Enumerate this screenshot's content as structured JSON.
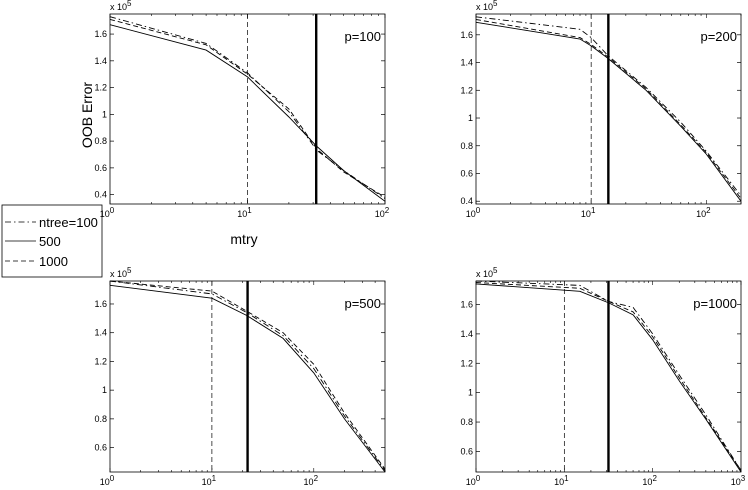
{
  "figure": {
    "ylabel": "OOB Error",
    "xlabel": "mtry",
    "legend": {
      "placement": "left, between top and bottom rows",
      "entries": [
        {
          "label": "ntree=100",
          "style": "dashdot"
        },
        {
          "label": "500",
          "style": "solid"
        },
        {
          "label": "1000",
          "style": "dashed"
        }
      ]
    }
  },
  "chart_data": [
    {
      "type": "line",
      "panel": "top-left",
      "title": "p=100",
      "xscale": "log",
      "xlim": [
        1,
        100
      ],
      "ylim": [
        0.33,
        1.75
      ],
      "yscale_label": "x 10^5",
      "yticks": [
        0.4,
        0.6,
        0.8,
        1,
        1.2,
        1.4,
        1.6
      ],
      "ytick_labels": [
        "0.4",
        "0.6",
        "0.8",
        "1",
        "1.2",
        "1.4",
        "1.6"
      ],
      "xtick_labels": [
        {
          "base": "10",
          "exp": "0"
        },
        {
          "base": "10",
          "exp": "1"
        },
        {
          "base": "10",
          "exp": "2"
        }
      ],
      "vlines": [
        {
          "x": 10,
          "style": "dashed"
        },
        {
          "x": 31.6,
          "style": "thick"
        }
      ],
      "series": [
        {
          "name": "ntree=100",
          "style": "dashdot",
          "x": [
            1,
            5,
            10,
            20,
            32,
            50,
            100
          ],
          "y": [
            1.73,
            1.53,
            1.31,
            1.02,
            0.73,
            0.58,
            0.37
          ]
        },
        {
          "name": "500",
          "style": "solid",
          "x": [
            1,
            5,
            10,
            20,
            32,
            50,
            100
          ],
          "y": [
            1.67,
            1.48,
            1.28,
            0.98,
            0.76,
            0.58,
            0.35
          ]
        },
        {
          "name": "1000",
          "style": "dashed",
          "x": [
            1,
            5,
            10,
            20,
            32,
            50,
            100
          ],
          "y": [
            1.71,
            1.52,
            1.3,
            1.04,
            0.74,
            0.57,
            0.38
          ]
        }
      ]
    },
    {
      "type": "line",
      "panel": "top-right",
      "title": "p=200",
      "xscale": "log",
      "xlim": [
        1,
        200
      ],
      "ylim": [
        0.38,
        1.75
      ],
      "yscale_label": "x 10^5",
      "yticks": [
        0.4,
        0.6,
        0.8,
        1,
        1.2,
        1.4,
        1.6
      ],
      "ytick_labels": [
        "0.4",
        "0.6",
        "0.8",
        "1",
        "1.2",
        "1.4",
        "1.6"
      ],
      "xtick_labels": [
        {
          "base": "10",
          "exp": "0"
        },
        {
          "base": "10",
          "exp": "1"
        },
        {
          "base": "10",
          "exp": "2"
        }
      ],
      "vlines": [
        {
          "x": 10,
          "style": "dashed"
        },
        {
          "x": 14.1,
          "style": "thick"
        }
      ],
      "series": [
        {
          "name": "ntree=100",
          "style": "dashdot",
          "x": [
            1,
            8,
            10,
            14,
            30,
            60,
            100,
            200
          ],
          "y": [
            1.73,
            1.64,
            1.58,
            1.45,
            1.22,
            0.97,
            0.76,
            0.44
          ]
        },
        {
          "name": "500",
          "style": "solid",
          "x": [
            1,
            8,
            10,
            14,
            30,
            60,
            100,
            200
          ],
          "y": [
            1.69,
            1.57,
            1.52,
            1.43,
            1.2,
            0.94,
            0.74,
            0.4
          ]
        },
        {
          "name": "1000",
          "style": "dashed",
          "x": [
            1,
            8,
            10,
            14,
            30,
            60,
            100,
            200
          ],
          "y": [
            1.71,
            1.58,
            1.53,
            1.44,
            1.21,
            0.95,
            0.75,
            0.42
          ]
        }
      ]
    },
    {
      "type": "line",
      "panel": "bottom-left",
      "title": "p=500",
      "xscale": "log",
      "xlim": [
        1,
        500
      ],
      "ylim": [
        0.43,
        1.76
      ],
      "yscale_label": "x 10^5",
      "yticks": [
        0.6,
        0.8,
        1,
        1.2,
        1.4,
        1.6
      ],
      "ytick_labels": [
        "0.6",
        "0.8",
        "1",
        "1.2",
        "1.4",
        "1.6"
      ],
      "xtick_labels": [
        {
          "base": "10",
          "exp": "0"
        },
        {
          "base": "10",
          "exp": "1"
        },
        {
          "base": "10",
          "exp": "2"
        }
      ],
      "vlines": [
        {
          "x": 10,
          "style": "dashed"
        },
        {
          "x": 22.4,
          "style": "thick"
        }
      ],
      "series": [
        {
          "name": "ntree=100",
          "style": "dashdot",
          "x": [
            1,
            10,
            22,
            50,
            100,
            200,
            500
          ],
          "y": [
            1.76,
            1.67,
            1.54,
            1.38,
            1.15,
            0.82,
            0.44
          ]
        },
        {
          "name": "500",
          "style": "solid",
          "x": [
            1,
            10,
            22,
            50,
            100,
            200,
            500
          ],
          "y": [
            1.73,
            1.64,
            1.52,
            1.36,
            1.12,
            0.8,
            0.43
          ]
        },
        {
          "name": "1000",
          "style": "dashed",
          "x": [
            1,
            10,
            22,
            50,
            100,
            200,
            500
          ],
          "y": [
            1.76,
            1.69,
            1.55,
            1.4,
            1.18,
            0.84,
            0.45
          ]
        }
      ]
    },
    {
      "type": "line",
      "panel": "bottom-right",
      "title": "p=1000",
      "xscale": "log",
      "xlim": [
        1,
        1000
      ],
      "ylim": [
        0.46,
        1.76
      ],
      "yscale_label": "x 10^5",
      "yticks": [
        0.6,
        0.8,
        1,
        1.2,
        1.4,
        1.6
      ],
      "ytick_labels": [
        "0.6",
        "0.8",
        "1",
        "1.2",
        "1.4",
        "1.6"
      ],
      "xtick_labels": [
        {
          "base": "10",
          "exp": "0"
        },
        {
          "base": "10",
          "exp": "1"
        },
        {
          "base": "10",
          "exp": "2"
        },
        {
          "base": "10",
          "exp": "3"
        }
      ],
      "vlines": [
        {
          "x": 10,
          "style": "dashed"
        },
        {
          "x": 31.6,
          "style": "thick"
        }
      ],
      "series": [
        {
          "name": "ntree=100",
          "style": "dashdot",
          "x": [
            1,
            15,
            32,
            60,
            100,
            200,
            400,
            1000
          ],
          "y": [
            1.76,
            1.73,
            1.62,
            1.58,
            1.4,
            1.12,
            0.85,
            0.47
          ]
        },
        {
          "name": "500",
          "style": "solid",
          "x": [
            1,
            15,
            32,
            60,
            100,
            200,
            400,
            1000
          ],
          "y": [
            1.74,
            1.69,
            1.61,
            1.53,
            1.36,
            1.08,
            0.82,
            0.46
          ]
        },
        {
          "name": "1000",
          "style": "dashed",
          "x": [
            1,
            15,
            32,
            60,
            100,
            200,
            400,
            1000
          ],
          "y": [
            1.75,
            1.71,
            1.62,
            1.55,
            1.38,
            1.1,
            0.83,
            0.47
          ]
        }
      ]
    }
  ]
}
